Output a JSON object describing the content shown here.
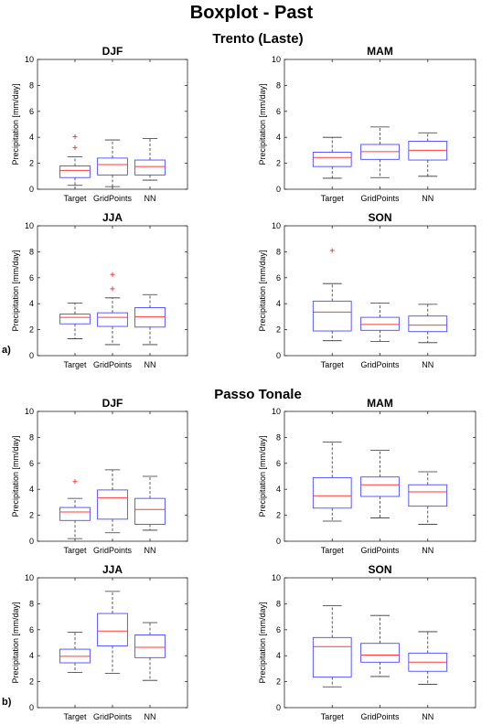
{
  "figure": {
    "title": "Boxplot - Past",
    "groups": [
      {
        "title": "Trento (Laste)",
        "label": "a)"
      },
      {
        "title": "Passo Tonale",
        "label": "b)"
      }
    ]
  },
  "colors": {
    "box": "#4a4aff",
    "median": "#ff3b3b",
    "outlier": "#ff3b3b",
    "whisker": "#333333",
    "axis": "#262626"
  },
  "chart_data": [
    {
      "type": "boxplot",
      "group": "Trento (Laste)",
      "title": "DJF",
      "ylabel": "Precipitation [mm/day]",
      "categories": [
        "Target",
        "GridPoints",
        "NN"
      ],
      "ylim": [
        0,
        10
      ],
      "yticks": [
        0,
        2,
        4,
        6,
        8,
        10
      ],
      "boxes": [
        {
          "category": "Target",
          "lower_whisker": 0.3,
          "q1": 0.9,
          "median": 1.45,
          "q3": 1.8,
          "upper_whisker": 2.5,
          "outliers": [
            3.2,
            4.05
          ]
        },
        {
          "category": "GridPoints",
          "lower_whisker": 0.2,
          "q1": 1.1,
          "median": 1.9,
          "q3": 2.4,
          "upper_whisker": 3.8,
          "outliers": []
        },
        {
          "category": "NN",
          "lower_whisker": 0.7,
          "q1": 1.1,
          "median": 1.75,
          "q3": 2.25,
          "upper_whisker": 3.9,
          "outliers": []
        }
      ]
    },
    {
      "type": "boxplot",
      "group": "Trento (Laste)",
      "title": "MAM",
      "ylabel": "Precipitation [mm/day]",
      "categories": [
        "Target",
        "GridPoints",
        "NN"
      ],
      "ylim": [
        0,
        10
      ],
      "yticks": [
        0,
        2,
        4,
        6,
        8,
        10
      ],
      "boxes": [
        {
          "category": "Target",
          "lower_whisker": 0.85,
          "q1": 1.75,
          "median": 2.45,
          "q3": 2.85,
          "upper_whisker": 4.0,
          "outliers": []
        },
        {
          "category": "GridPoints",
          "lower_whisker": 0.9,
          "q1": 2.3,
          "median": 2.9,
          "q3": 3.45,
          "upper_whisker": 4.8,
          "outliers": []
        },
        {
          "category": "NN",
          "lower_whisker": 1.0,
          "q1": 2.25,
          "median": 3.0,
          "q3": 3.7,
          "upper_whisker": 4.35,
          "outliers": []
        }
      ]
    },
    {
      "type": "boxplot",
      "group": "Trento (Laste)",
      "title": "JJA",
      "ylabel": "Precipitation [mm/day]",
      "categories": [
        "Target",
        "GridPoints",
        "NN"
      ],
      "ylim": [
        0,
        10
      ],
      "yticks": [
        0,
        2,
        4,
        6,
        8,
        10
      ],
      "boxes": [
        {
          "category": "Target",
          "lower_whisker": 1.3,
          "q1": 2.45,
          "median": 2.95,
          "q3": 3.2,
          "upper_whisker": 4.05,
          "outliers": []
        },
        {
          "category": "GridPoints",
          "lower_whisker": 0.85,
          "q1": 2.25,
          "median": 2.95,
          "q3": 3.3,
          "upper_whisker": 4.45,
          "outliers": [
            5.15,
            6.25
          ]
        },
        {
          "category": "NN",
          "lower_whisker": 0.85,
          "q1": 2.2,
          "median": 3.0,
          "q3": 3.7,
          "upper_whisker": 4.7,
          "outliers": []
        }
      ]
    },
    {
      "type": "boxplot",
      "group": "Trento (Laste)",
      "title": "SON",
      "ylabel": "Precipitation [mm/day]",
      "categories": [
        "Target",
        "GridPoints",
        "NN"
      ],
      "ylim": [
        0,
        10
      ],
      "yticks": [
        0,
        2,
        4,
        6,
        8,
        10
      ],
      "boxes": [
        {
          "category": "Target",
          "lower_whisker": 1.15,
          "q1": 1.9,
          "median": 3.35,
          "q3": 4.2,
          "upper_whisker": 5.55,
          "outliers": [
            8.1
          ]
        },
        {
          "category": "GridPoints",
          "lower_whisker": 1.1,
          "q1": 1.95,
          "median": 2.4,
          "q3": 2.95,
          "upper_whisker": 4.05,
          "outliers": []
        },
        {
          "category": "NN",
          "lower_whisker": 1.0,
          "q1": 1.85,
          "median": 2.35,
          "q3": 3.05,
          "upper_whisker": 3.95,
          "outliers": []
        }
      ]
    },
    {
      "type": "boxplot",
      "group": "Passo Tonale",
      "title": "DJF",
      "ylabel": "Precipitation [mm/day]",
      "categories": [
        "Target",
        "GridPoints",
        "NN"
      ],
      "ylim": [
        0,
        10
      ],
      "yticks": [
        0,
        2,
        4,
        6,
        8,
        10
      ],
      "boxes": [
        {
          "category": "Target",
          "lower_whisker": 0.2,
          "q1": 1.6,
          "median": 2.25,
          "q3": 2.6,
          "upper_whisker": 3.3,
          "outliers": [
            4.6
          ]
        },
        {
          "category": "GridPoints",
          "lower_whisker": 0.65,
          "q1": 1.7,
          "median": 3.35,
          "q3": 3.95,
          "upper_whisker": 5.5,
          "outliers": []
        },
        {
          "category": "NN",
          "lower_whisker": 0.85,
          "q1": 1.3,
          "median": 2.45,
          "q3": 3.3,
          "upper_whisker": 5.0,
          "outliers": []
        }
      ]
    },
    {
      "type": "boxplot",
      "group": "Passo Tonale",
      "title": "MAM",
      "ylabel": "Precipitation [mm/day]",
      "categories": [
        "Target",
        "GridPoints",
        "NN"
      ],
      "ylim": [
        0,
        10
      ],
      "yticks": [
        0,
        2,
        4,
        6,
        8,
        10
      ],
      "boxes": [
        {
          "category": "Target",
          "lower_whisker": 1.55,
          "q1": 2.55,
          "median": 3.5,
          "q3": 4.9,
          "upper_whisker": 7.65,
          "outliers": []
        },
        {
          "category": "GridPoints",
          "lower_whisker": 1.8,
          "q1": 3.45,
          "median": 4.35,
          "q3": 4.95,
          "upper_whisker": 7.0,
          "outliers": []
        },
        {
          "category": "NN",
          "lower_whisker": 1.3,
          "q1": 2.7,
          "median": 3.8,
          "q3": 4.35,
          "upper_whisker": 5.35,
          "outliers": []
        }
      ]
    },
    {
      "type": "boxplot",
      "group": "Passo Tonale",
      "title": "JJA",
      "ylabel": "Precipitation [mm/day]",
      "categories": [
        "Target",
        "GridPoints",
        "NN"
      ],
      "ylim": [
        0,
        10
      ],
      "yticks": [
        0,
        2,
        4,
        6,
        8,
        10
      ],
      "boxes": [
        {
          "category": "Target",
          "lower_whisker": 2.7,
          "q1": 3.45,
          "median": 3.95,
          "q3": 4.5,
          "upper_whisker": 5.8,
          "outliers": []
        },
        {
          "category": "GridPoints",
          "lower_whisker": 2.65,
          "q1": 4.75,
          "median": 5.9,
          "q3": 7.25,
          "upper_whisker": 8.95,
          "outliers": []
        },
        {
          "category": "NN",
          "lower_whisker": 2.1,
          "q1": 3.85,
          "median": 4.65,
          "q3": 5.6,
          "upper_whisker": 6.55,
          "outliers": []
        }
      ]
    },
    {
      "type": "boxplot",
      "group": "Passo Tonale",
      "title": "SON",
      "ylabel": "Precipitation [mm/day]",
      "categories": [
        "Target",
        "GridPoints",
        "NN"
      ],
      "ylim": [
        0,
        10
      ],
      "yticks": [
        0,
        2,
        4,
        6,
        8,
        10
      ],
      "boxes": [
        {
          "category": "Target",
          "lower_whisker": 1.6,
          "q1": 2.35,
          "median": 4.7,
          "q3": 5.4,
          "upper_whisker": 7.85,
          "outliers": []
        },
        {
          "category": "GridPoints",
          "lower_whisker": 2.4,
          "q1": 3.5,
          "median": 4.05,
          "q3": 4.95,
          "upper_whisker": 7.1,
          "outliers": []
        },
        {
          "category": "NN",
          "lower_whisker": 1.8,
          "q1": 2.8,
          "median": 3.5,
          "q3": 4.2,
          "upper_whisker": 5.85,
          "outliers": []
        }
      ]
    }
  ]
}
